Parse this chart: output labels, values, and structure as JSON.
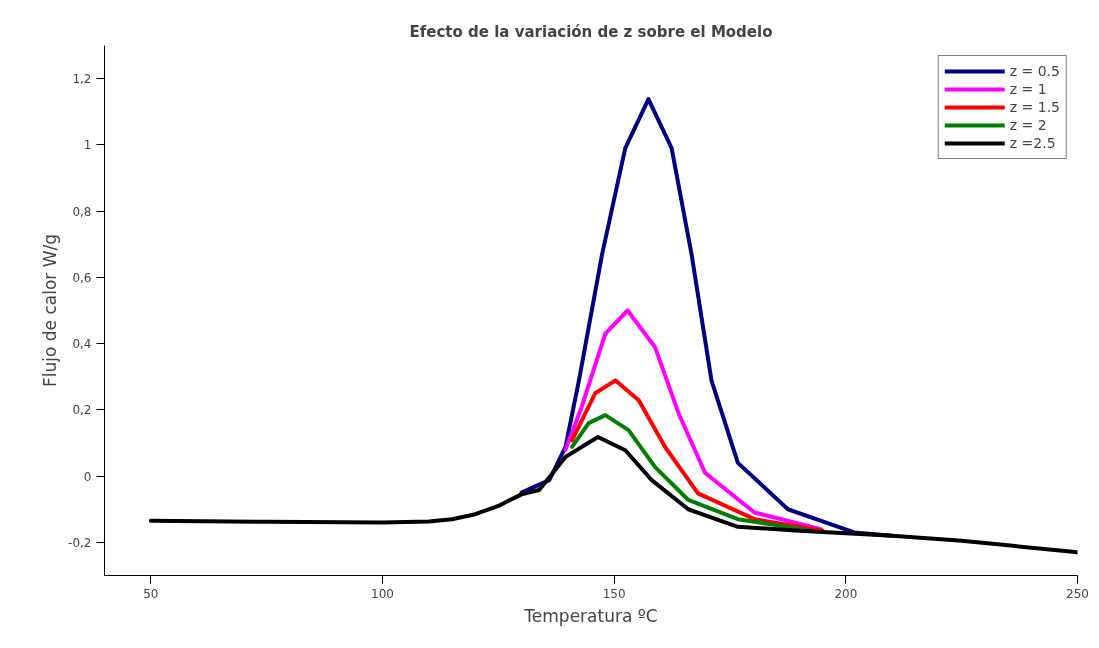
{
  "chart_data": {
    "type": "line",
    "title": "Efecto de la variación de z sobre el Modelo",
    "xlabel": "Temperatura ºC",
    "ylabel": "Flujo de calor W/g",
    "xlim": [
      40,
      250
    ],
    "xticks": [
      50,
      100,
      150,
      200,
      250
    ],
    "ylim": [
      -0.3,
      1.3
    ],
    "yticks": [
      {
        "value": -0.2,
        "label": "-0,2"
      },
      0,
      {
        "value": 0.2,
        "label": "0,2"
      },
      {
        "value": 0.4,
        "label": "0,4"
      },
      {
        "value": 0.6,
        "label": "0,6"
      },
      {
        "value": 0.8,
        "label": "0,8"
      },
      1,
      {
        "value": 1.2,
        "label": "1,2"
      }
    ],
    "grid": false,
    "legend": "top right",
    "marker": "none",
    "line_style": "solid",
    "series": [
      {
        "name": "z = 0.5",
        "color": "#000080",
        "x": [
          130,
          136,
          139.5,
          142.4,
          147.4,
          152.4,
          157.4,
          162.4,
          166.7,
          171,
          176.7,
          187.5,
          201.8,
          210
        ],
        "values": [
          -0.05,
          -0.012,
          0.088,
          0.289,
          0.67,
          0.99,
          1.138,
          0.99,
          0.67,
          0.289,
          0.04,
          -0.1,
          -0.17,
          -0.18
        ]
      },
      {
        "name": "z = 1",
        "color": "#ff00ff",
        "x": [
          139.5,
          143,
          148.1,
          152.9,
          158.8,
          163.9,
          169.6,
          180.3,
          194.6
        ],
        "values": [
          0.08,
          0.209,
          0.43,
          0.5,
          0.39,
          0.19,
          0.01,
          -0.11,
          -0.16
        ]
      },
      {
        "name": "z = 1.5",
        "color": "#ff0000",
        "x": [
          140.9,
          145.9,
          150.3,
          155.3,
          161,
          168.1,
          180.3,
          195
        ],
        "values": [
          0.108,
          0.25,
          0.289,
          0.229,
          0.088,
          -0.052,
          -0.13,
          -0.165
        ]
      },
      {
        "name": "z = 2",
        "color": "#008000",
        "x": [
          140.9,
          144.5,
          148.1,
          153.1,
          158.8,
          166,
          176.7,
          192
        ],
        "values": [
          0.088,
          0.16,
          0.184,
          0.139,
          0.028,
          -0.072,
          -0.13,
          -0.163
        ]
      },
      {
        "name": "z =2.5",
        "color": "#000000",
        "x": [
          50,
          75,
          100,
          110,
          115,
          120,
          125,
          130,
          133.8,
          139.5,
          146.5,
          152.4,
          158.1,
          166,
          176.7,
          190,
          210,
          225,
          250
        ],
        "values": [
          -0.135,
          -0.138,
          -0.14,
          -0.137,
          -0.13,
          -0.115,
          -0.09,
          -0.055,
          -0.042,
          0.058,
          0.118,
          0.078,
          -0.012,
          -0.1,
          -0.153,
          -0.165,
          -0.18,
          -0.195,
          -0.23
        ]
      }
    ]
  }
}
